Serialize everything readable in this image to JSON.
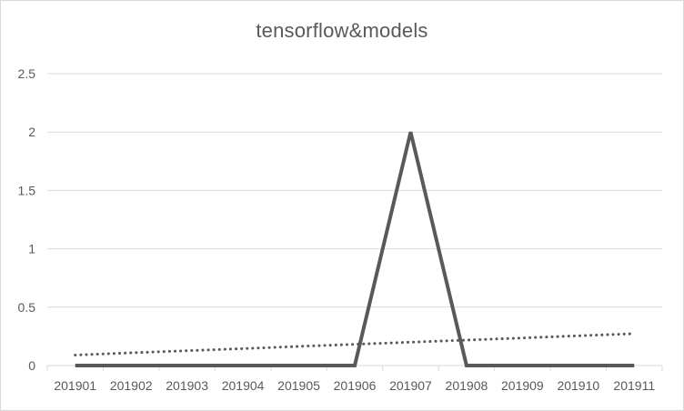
{
  "chart_data": {
    "type": "line",
    "title": "tensorflow&models",
    "xlabel": "",
    "ylabel": "",
    "categories": [
      "201901",
      "201902",
      "201903",
      "201904",
      "201905",
      "201906",
      "201907",
      "201908",
      "201909",
      "201910",
      "201911"
    ],
    "series": [
      {
        "name": "",
        "values": [
          0,
          0,
          0,
          0,
          0,
          0,
          2,
          0,
          0,
          0,
          0
        ],
        "color": "#595959",
        "style": "solid"
      }
    ],
    "trendline": {
      "type": "linear",
      "style": "dotted",
      "color": "#595959",
      "values": [
        0.09,
        0.109,
        0.127,
        0.145,
        0.164,
        0.182,
        0.2,
        0.218,
        0.236,
        0.255,
        0.273
      ]
    },
    "ylim": [
      0,
      2.5
    ],
    "yticks": [
      "0",
      "0.5",
      "1",
      "1.5",
      "2",
      "2.5"
    ],
    "grid": true,
    "legend": "none"
  }
}
